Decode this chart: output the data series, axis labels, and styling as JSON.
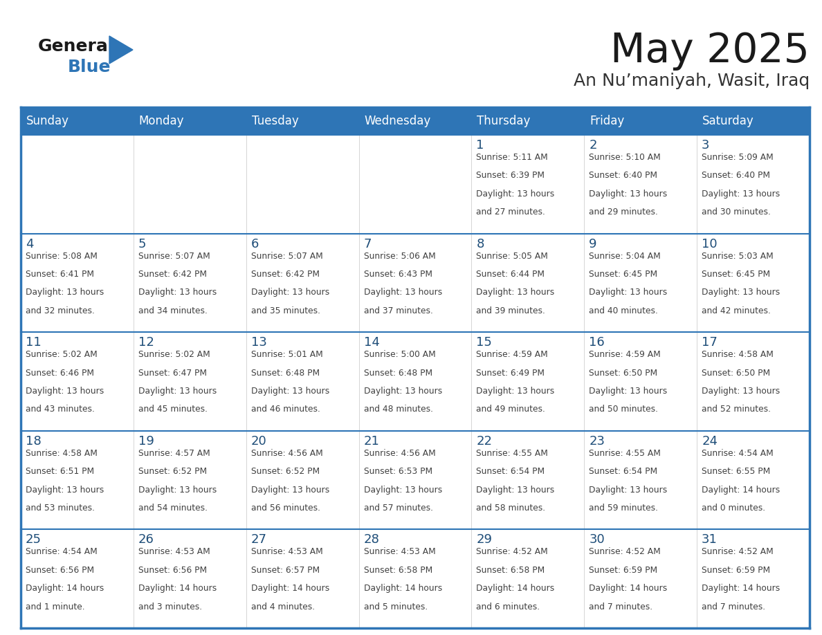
{
  "title": "May 2025",
  "subtitle": "An Nu’maniyah, Wasit, Iraq",
  "header_bg": "#2E75B6",
  "header_text_color": "#FFFFFF",
  "day_number_color": "#1F4E79",
  "border_color": "#2E75B6",
  "days_of_week": [
    "Sunday",
    "Monday",
    "Tuesday",
    "Wednesday",
    "Thursday",
    "Friday",
    "Saturday"
  ],
  "weeks": [
    [
      {
        "day": null,
        "sunrise": null,
        "sunset": null,
        "daylight": null
      },
      {
        "day": null,
        "sunrise": null,
        "sunset": null,
        "daylight": null
      },
      {
        "day": null,
        "sunrise": null,
        "sunset": null,
        "daylight": null
      },
      {
        "day": null,
        "sunrise": null,
        "sunset": null,
        "daylight": null
      },
      {
        "day": 1,
        "sunrise": "5:11 AM",
        "sunset": "6:39 PM",
        "daylight": "13 hours and 27 minutes."
      },
      {
        "day": 2,
        "sunrise": "5:10 AM",
        "sunset": "6:40 PM",
        "daylight": "13 hours and 29 minutes."
      },
      {
        "day": 3,
        "sunrise": "5:09 AM",
        "sunset": "6:40 PM",
        "daylight": "13 hours and 30 minutes."
      }
    ],
    [
      {
        "day": 4,
        "sunrise": "5:08 AM",
        "sunset": "6:41 PM",
        "daylight": "13 hours and 32 minutes."
      },
      {
        "day": 5,
        "sunrise": "5:07 AM",
        "sunset": "6:42 PM",
        "daylight": "13 hours and 34 minutes."
      },
      {
        "day": 6,
        "sunrise": "5:07 AM",
        "sunset": "6:42 PM",
        "daylight": "13 hours and 35 minutes."
      },
      {
        "day": 7,
        "sunrise": "5:06 AM",
        "sunset": "6:43 PM",
        "daylight": "13 hours and 37 minutes."
      },
      {
        "day": 8,
        "sunrise": "5:05 AM",
        "sunset": "6:44 PM",
        "daylight": "13 hours and 39 minutes."
      },
      {
        "day": 9,
        "sunrise": "5:04 AM",
        "sunset": "6:45 PM",
        "daylight": "13 hours and 40 minutes."
      },
      {
        "day": 10,
        "sunrise": "5:03 AM",
        "sunset": "6:45 PM",
        "daylight": "13 hours and 42 minutes."
      }
    ],
    [
      {
        "day": 11,
        "sunrise": "5:02 AM",
        "sunset": "6:46 PM",
        "daylight": "13 hours and 43 minutes."
      },
      {
        "day": 12,
        "sunrise": "5:02 AM",
        "sunset": "6:47 PM",
        "daylight": "13 hours and 45 minutes."
      },
      {
        "day": 13,
        "sunrise": "5:01 AM",
        "sunset": "6:48 PM",
        "daylight": "13 hours and 46 minutes."
      },
      {
        "day": 14,
        "sunrise": "5:00 AM",
        "sunset": "6:48 PM",
        "daylight": "13 hours and 48 minutes."
      },
      {
        "day": 15,
        "sunrise": "4:59 AM",
        "sunset": "6:49 PM",
        "daylight": "13 hours and 49 minutes."
      },
      {
        "day": 16,
        "sunrise": "4:59 AM",
        "sunset": "6:50 PM",
        "daylight": "13 hours and 50 minutes."
      },
      {
        "day": 17,
        "sunrise": "4:58 AM",
        "sunset": "6:50 PM",
        "daylight": "13 hours and 52 minutes."
      }
    ],
    [
      {
        "day": 18,
        "sunrise": "4:58 AM",
        "sunset": "6:51 PM",
        "daylight": "13 hours and 53 minutes."
      },
      {
        "day": 19,
        "sunrise": "4:57 AM",
        "sunset": "6:52 PM",
        "daylight": "13 hours and 54 minutes."
      },
      {
        "day": 20,
        "sunrise": "4:56 AM",
        "sunset": "6:52 PM",
        "daylight": "13 hours and 56 minutes."
      },
      {
        "day": 21,
        "sunrise": "4:56 AM",
        "sunset": "6:53 PM",
        "daylight": "13 hours and 57 minutes."
      },
      {
        "day": 22,
        "sunrise": "4:55 AM",
        "sunset": "6:54 PM",
        "daylight": "13 hours and 58 minutes."
      },
      {
        "day": 23,
        "sunrise": "4:55 AM",
        "sunset": "6:54 PM",
        "daylight": "13 hours and 59 minutes."
      },
      {
        "day": 24,
        "sunrise": "4:54 AM",
        "sunset": "6:55 PM",
        "daylight": "14 hours and 0 minutes."
      }
    ],
    [
      {
        "day": 25,
        "sunrise": "4:54 AM",
        "sunset": "6:56 PM",
        "daylight": "14 hours and 1 minute."
      },
      {
        "day": 26,
        "sunrise": "4:53 AM",
        "sunset": "6:56 PM",
        "daylight": "14 hours and 3 minutes."
      },
      {
        "day": 27,
        "sunrise": "4:53 AM",
        "sunset": "6:57 PM",
        "daylight": "14 hours and 4 minutes."
      },
      {
        "day": 28,
        "sunrise": "4:53 AM",
        "sunset": "6:58 PM",
        "daylight": "14 hours and 5 minutes."
      },
      {
        "day": 29,
        "sunrise": "4:52 AM",
        "sunset": "6:58 PM",
        "daylight": "14 hours and 6 minutes."
      },
      {
        "day": 30,
        "sunrise": "4:52 AM",
        "sunset": "6:59 PM",
        "daylight": "14 hours and 7 minutes."
      },
      {
        "day": 31,
        "sunrise": "4:52 AM",
        "sunset": "6:59 PM",
        "daylight": "14 hours and 7 minutes."
      }
    ]
  ]
}
